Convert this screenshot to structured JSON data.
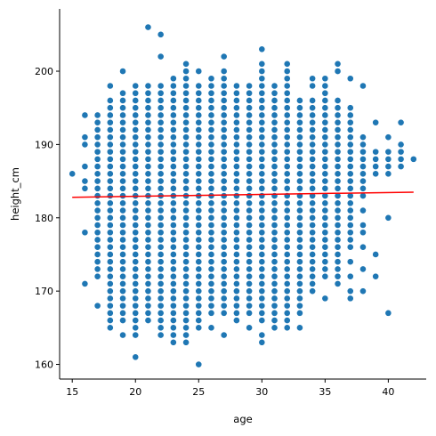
{
  "chart_data": {
    "type": "scatter",
    "title": "",
    "xlabel": "age",
    "ylabel": "height_cm",
    "xlim": [
      14,
      43
    ],
    "ylim": [
      158,
      208.5
    ],
    "xticks": [
      15,
      20,
      25,
      30,
      35,
      40
    ],
    "yticks": [
      160,
      170,
      180,
      190,
      200
    ],
    "grid": false,
    "legend": "none",
    "point_color": "#1f77b4",
    "point_edge_color": "#ffffff",
    "trend_color": "#ff0000",
    "columns": [
      {
        "x": 15,
        "ranges": [
          [
            186,
            186
          ]
        ]
      },
      {
        "x": 16,
        "ranges": [
          [
            184,
            185
          ],
          [
            187,
            187
          ],
          [
            190,
            191
          ],
          [
            194,
            194
          ]
        ],
        "extra": [
          171,
          178
        ]
      },
      {
        "x": 17,
        "ranges": [
          [
            172,
            194
          ]
        ],
        "extra": [
          168
        ]
      },
      {
        "x": 18,
        "ranges": [
          [
            167,
            196
          ]
        ],
        "extra": [
          165,
          166,
          198
        ]
      },
      {
        "x": 19,
        "ranges": [
          [
            166,
            197
          ]
        ],
        "extra": [
          164,
          200
        ]
      },
      {
        "x": 20,
        "ranges": [
          [
            164,
            198
          ]
        ],
        "extra": [
          161
        ]
      },
      {
        "x": 21,
        "ranges": [
          [
            166,
            198
          ]
        ],
        "extra": [
          206
        ]
      },
      {
        "x": 22,
        "ranges": [
          [
            165,
            198
          ]
        ],
        "extra": [
          164,
          202,
          205
        ]
      },
      {
        "x": 23,
        "ranges": [
          [
            165,
            199
          ]
        ],
        "extra": [
          163,
          164
        ]
      },
      {
        "x": 24,
        "ranges": [
          [
            164,
            199
          ]
        ],
        "extra": [
          163,
          200,
          201
        ]
      },
      {
        "x": 25,
        "ranges": [
          [
            165,
            198
          ]
        ],
        "extra": [
          160,
          200
        ]
      },
      {
        "x": 26,
        "ranges": [
          [
            167,
            199
          ]
        ],
        "extra": [
          165
        ]
      },
      {
        "x": 27,
        "ranges": [
          [
            167,
            199
          ]
        ],
        "extra": [
          164,
          200,
          202
        ]
      },
      {
        "x": 28,
        "ranges": [
          [
            167,
            198
          ]
        ],
        "extra": [
          166
        ]
      },
      {
        "x": 29,
        "ranges": [
          [
            167,
            198
          ]
        ],
        "extra": [
          165
        ]
      },
      {
        "x": 30,
        "ranges": [
          [
            166,
            199
          ]
        ],
        "extra": [
          163,
          164,
          200,
          201,
          203
        ]
      },
      {
        "x": 31,
        "ranges": [
          [
            166,
            198
          ]
        ],
        "extra": [
          165
        ]
      },
      {
        "x": 32,
        "ranges": [
          [
            167,
            199
          ]
        ],
        "extra": [
          165,
          166,
          200,
          201
        ]
      },
      {
        "x": 33,
        "ranges": [
          [
            167,
            196
          ]
        ],
        "extra": [
          165
        ]
      },
      {
        "x": 34,
        "ranges": [
          [
            171,
            196
          ]
        ],
        "extra": [
          170,
          198,
          199
        ]
      },
      {
        "x": 35,
        "ranges": [
          [
            172,
            197
          ]
        ],
        "extra": [
          169,
          198,
          199
        ]
      },
      {
        "x": 36,
        "ranges": [
          [
            174,
            196
          ]
        ],
        "extra": [
          171,
          172,
          173,
          200,
          201
        ]
      },
      {
        "x": 37,
        "ranges": [
          [
            176,
            195
          ]
        ],
        "extra": [
          169,
          170,
          172,
          174,
          199
        ]
      },
      {
        "x": 38,
        "ranges": [
          [
            183,
            191
          ]
        ],
        "extra": [
          170,
          173,
          176,
          178,
          179,
          181,
          198
        ]
      },
      {
        "x": 39,
        "ranges": [
          [
            186,
            189
          ]
        ],
        "extra": [
          172,
          175,
          193
        ]
      },
      {
        "x": 40,
        "ranges": [
          [
            186,
            189
          ]
        ],
        "extra": [
          167,
          180,
          191
        ]
      },
      {
        "x": 41,
        "ranges": [
          [
            187,
            190
          ]
        ],
        "extra": [
          193
        ]
      },
      {
        "x": 42,
        "ranges": [
          [
            188,
            188
          ]
        ]
      }
    ],
    "trend_line": {
      "x": [
        15,
        42
      ],
      "y": [
        182.8,
        183.5
      ]
    }
  }
}
